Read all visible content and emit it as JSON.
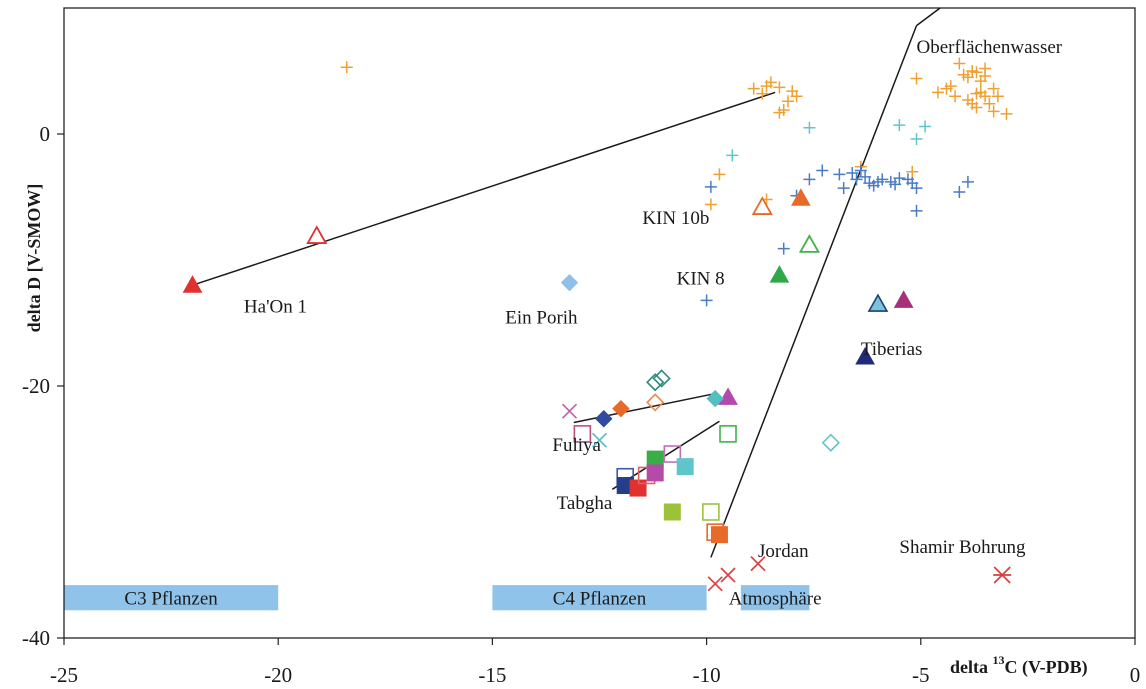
{
  "chart_data": {
    "type": "scatter",
    "xlabel_main": "delta ",
    "xlabel_sup": "13",
    "xlabel_rest": "C (V-PDB)",
    "ylabel": "delta D [V-SMOW]",
    "xlim": [
      -25,
      0
    ],
    "ylim": [
      -40,
      10
    ],
    "x_ticks": [
      {
        "value": -25,
        "label": "-25"
      },
      {
        "value": -20,
        "label": "-20"
      },
      {
        "value": -15,
        "label": "-15"
      },
      {
        "value": -10,
        "label": "-10"
      },
      {
        "value": -5,
        "label": "-5"
      },
      {
        "value": 0,
        "label": "0"
      }
    ],
    "y_ticks": [
      {
        "value": 0,
        "label": "0"
      },
      {
        "value": -20,
        "label": "-20"
      },
      {
        "value": -40,
        "label": "-40"
      }
    ],
    "bands": [
      {
        "label": "C3 Pflanzen",
        "x0": -25,
        "x1": -20,
        "y0": -37.8,
        "y1": -35.8,
        "color": "#8fc3ea"
      },
      {
        "label": "C4 Pflanzen",
        "x0": -15,
        "x1": -10,
        "y0": -37.8,
        "y1": -35.8,
        "color": "#8fc3ea"
      },
      {
        "label": "Atmosphäre",
        "x0": -9.2,
        "x1": -7.6,
        "y0": -37.8,
        "y1": -35.8,
        "color": "#8fc3ea"
      }
    ],
    "lines": [
      {
        "x1": -22.0,
        "y1": -12.0,
        "x2": -8.4,
        "y2": 3.3
      },
      {
        "x1": -13.1,
        "y1": -22.9,
        "x2": -9.8,
        "y2": -20.6
      },
      {
        "x1": -12.2,
        "y1": -28.2,
        "x2": -9.7,
        "y2": -22.8
      },
      {
        "x1": -9.9,
        "y1": -33.6,
        "x2": -5.1,
        "y2": 8.6
      },
      {
        "x1": -5.1,
        "y1": 8.6,
        "x2": -4.55,
        "y2": 10.0
      }
    ],
    "annotations": [
      {
        "text": "Oberflächenwasser",
        "x": -5.1,
        "y": 7.0
      },
      {
        "text": "KIN 10b",
        "x": -11.5,
        "y": -6.6
      },
      {
        "text": "KIN 8",
        "x": -10.7,
        "y": -11.4
      },
      {
        "text": "Ha'On 1",
        "x": -20.8,
        "y": -13.6
      },
      {
        "text": "Ein Porih",
        "x": -14.7,
        "y": -14.5
      },
      {
        "text": "Tiberias",
        "x": -6.4,
        "y": -17.0
      },
      {
        "text": "Fuliya",
        "x": -13.6,
        "y": -24.6
      },
      {
        "text": "Tabgha",
        "x": -13.5,
        "y": -29.2
      },
      {
        "text": "Jordan",
        "x": -8.8,
        "y": -33.0
      },
      {
        "text": "Shamir Bohrung",
        "x": -5.5,
        "y": -32.7
      }
    ],
    "series": [
      {
        "marker": "plus",
        "color": "#f0a030",
        "points": [
          [
            -18.4,
            5.3
          ],
          [
            -8.5,
            4.1
          ],
          [
            -8.0,
            3.4
          ],
          [
            -8.3,
            3.7
          ],
          [
            -7.9,
            3.0
          ],
          [
            -8.1,
            2.6
          ],
          [
            -8.2,
            1.9
          ],
          [
            -8.3,
            1.7
          ],
          [
            -8.6,
            3.8
          ],
          [
            -8.9,
            3.6
          ],
          [
            -8.7,
            3.2
          ],
          [
            -4.1,
            5.6
          ],
          [
            -3.5,
            5.2
          ],
          [
            -3.7,
            4.9
          ],
          [
            -3.9,
            4.5
          ],
          [
            -3.6,
            4.2
          ],
          [
            -4.0,
            4.7
          ],
          [
            -4.3,
            3.8
          ],
          [
            -3.3,
            3.6
          ],
          [
            -3.7,
            3.2
          ],
          [
            -3.5,
            3.0
          ],
          [
            -3.9,
            2.7
          ],
          [
            -3.4,
            2.4
          ],
          [
            -3.7,
            2.1
          ],
          [
            -3.3,
            1.8
          ],
          [
            -3.0,
            1.6
          ],
          [
            -4.6,
            3.3
          ],
          [
            -4.4,
            3.6
          ],
          [
            -3.8,
            2.4
          ],
          [
            -3.2,
            3.0
          ],
          [
            -5.1,
            4.4
          ],
          [
            -9.7,
            -3.2
          ],
          [
            -9.9,
            -5.6
          ],
          [
            -8.6,
            -5.2
          ],
          [
            -5.2,
            -3.0
          ],
          [
            -6.4,
            -2.6
          ],
          [
            -3.6,
            3.3
          ],
          [
            -4.2,
            3.0
          ],
          [
            -3.5,
            4.6
          ],
          [
            -3.8,
            5.0
          ]
        ]
      },
      {
        "marker": "plus",
        "color": "#4a7cc4",
        "points": [
          [
            -9.9,
            -4.2
          ],
          [
            -7.9,
            -4.9
          ],
          [
            -7.3,
            -2.9
          ],
          [
            -6.9,
            -3.2
          ],
          [
            -6.6,
            -3.1
          ],
          [
            -6.5,
            -3.6
          ],
          [
            -6.4,
            -2.9
          ],
          [
            -6.3,
            -3.4
          ],
          [
            -6.2,
            -3.9
          ],
          [
            -6.1,
            -4.1
          ],
          [
            -5.9,
            -3.6
          ],
          [
            -5.6,
            -4.0
          ],
          [
            -5.3,
            -3.6
          ],
          [
            -5.2,
            -3.9
          ],
          [
            -5.1,
            -4.3
          ],
          [
            -5.1,
            -6.1
          ],
          [
            -4.1,
            -4.6
          ],
          [
            -3.9,
            -3.8
          ],
          [
            -7.6,
            -3.6
          ],
          [
            -6.8,
            -4.3
          ],
          [
            -6.0,
            -3.8
          ],
          [
            -5.7,
            -3.8
          ],
          [
            -5.5,
            -3.5
          ],
          [
            -8.2,
            -9.1
          ],
          [
            -10.0,
            -13.2
          ]
        ]
      },
      {
        "marker": "plus",
        "color": "#5fc5cc",
        "points": [
          [
            -9.4,
            -1.7
          ],
          [
            -7.6,
            0.5
          ],
          [
            -5.5,
            0.7
          ],
          [
            -4.9,
            0.6
          ],
          [
            -5.1,
            -0.4
          ]
        ]
      },
      {
        "marker": "tri-fill",
        "color": "#e03030",
        "points": [
          [
            -22.0,
            -12.0
          ]
        ]
      },
      {
        "marker": "tri-open",
        "color": "#e03030",
        "points": [
          [
            -19.1,
            -8.1
          ]
        ]
      },
      {
        "marker": "tri-open",
        "color": "#e86a2a",
        "points": [
          [
            -8.7,
            -5.8
          ]
        ]
      },
      {
        "marker": "tri-fill",
        "color": "#e86a2a",
        "points": [
          [
            -7.8,
            -5.1
          ]
        ]
      },
      {
        "marker": "tri-open",
        "color": "#43b14a",
        "points": [
          [
            -7.6,
            -8.8
          ]
        ]
      },
      {
        "marker": "tri-fill",
        "color": "#2fa84a",
        "points": [
          [
            -8.3,
            -11.2
          ]
        ]
      },
      {
        "marker": "tri-fill",
        "color": "#7ac3d8",
        "stroke": "#1d3f7a",
        "points": [
          [
            -6.0,
            -13.5
          ]
        ]
      },
      {
        "marker": "tri-fill",
        "color": "#a8307a",
        "points": [
          [
            -5.4,
            -13.2
          ]
        ]
      },
      {
        "marker": "tri-fill",
        "color": "#1f2b7a",
        "points": [
          [
            -6.3,
            -17.7
          ]
        ]
      },
      {
        "marker": "tri-fill",
        "color": "#b04ab0",
        "points": [
          [
            -9.5,
            -20.9
          ]
        ]
      },
      {
        "marker": "diamond-fill",
        "color": "#8fc0ea",
        "points": [
          [
            -13.2,
            -11.8
          ]
        ]
      },
      {
        "marker": "diamond-fill",
        "color": "#2f4a9e",
        "points": [
          [
            -12.4,
            -22.6
          ]
        ]
      },
      {
        "marker": "diamond-fill",
        "color": "#e86a2a",
        "points": [
          [
            -12.0,
            -21.8
          ]
        ]
      },
      {
        "marker": "diamond-open",
        "color": "#e88a50",
        "points": [
          [
            -11.2,
            -21.3
          ]
        ]
      },
      {
        "marker": "diamond-open",
        "color": "#2e8a80",
        "points": [
          [
            -11.2,
            -19.7
          ],
          [
            -11.05,
            -19.4
          ]
        ]
      },
      {
        "marker": "diamond-fill",
        "color": "#52c0c0",
        "points": [
          [
            -9.8,
            -21.0
          ]
        ]
      },
      {
        "marker": "diamond-open",
        "color": "#5fc5cc",
        "points": [
          [
            -7.1,
            -24.5
          ]
        ]
      },
      {
        "marker": "cross",
        "color": "#c260b0",
        "points": [
          [
            -13.2,
            -22.0
          ]
        ]
      },
      {
        "marker": "cross",
        "color": "#52c0c0",
        "points": [
          [
            -12.5,
            -24.3
          ]
        ]
      },
      {
        "marker": "cross",
        "color": "#e04040",
        "points": [
          [
            -9.8,
            -35.7
          ],
          [
            -9.5,
            -35.0
          ],
          [
            -8.8,
            -34.1
          ]
        ]
      },
      {
        "marker": "asterisk",
        "color": "#d84040",
        "points": [
          [
            -3.1,
            -35.0
          ]
        ]
      },
      {
        "marker": "square-open",
        "color": "#c05080",
        "points": [
          [
            -12.9,
            -23.8
          ]
        ]
      },
      {
        "marker": "square-open",
        "color": "#3a5aaa",
        "points": [
          [
            -11.9,
            -27.2
          ]
        ]
      },
      {
        "marker": "square-fill",
        "color": "#253e8a",
        "points": [
          [
            -11.9,
            -27.9
          ]
        ]
      },
      {
        "marker": "square-fill",
        "color": "#e03030",
        "points": [
          [
            -11.6,
            -28.1
          ]
        ]
      },
      {
        "marker": "square-open",
        "color": "#e06060",
        "points": [
          [
            -11.4,
            -27.1
          ]
        ]
      },
      {
        "marker": "square-fill",
        "color": "#3aae46",
        "points": [
          [
            -11.2,
            -25.8
          ]
        ]
      },
      {
        "marker": "square-fill",
        "color": "#b64aa8",
        "points": [
          [
            -11.2,
            -26.9
          ]
        ]
      },
      {
        "marker": "square-open",
        "color": "#c070b8",
        "points": [
          [
            -10.8,
            -25.4
          ]
        ]
      },
      {
        "marker": "square-fill",
        "color": "#5fc5cc",
        "points": [
          [
            -10.5,
            -26.4
          ]
        ]
      },
      {
        "marker": "square-fill",
        "color": "#9cc23a",
        "points": [
          [
            -10.8,
            -30.0
          ]
        ]
      },
      {
        "marker": "square-open",
        "color": "#9cc23a",
        "points": [
          [
            -9.9,
            -30.0
          ]
        ]
      },
      {
        "marker": "square-open",
        "color": "#43b14a",
        "points": [
          [
            -9.5,
            -23.8
          ]
        ]
      },
      {
        "marker": "square-open",
        "color": "#e86a2a",
        "points": [
          [
            -9.8,
            -31.6
          ]
        ]
      },
      {
        "marker": "square-fill",
        "color": "#e86a2a",
        "points": [
          [
            -9.7,
            -31.8
          ]
        ]
      }
    ]
  }
}
